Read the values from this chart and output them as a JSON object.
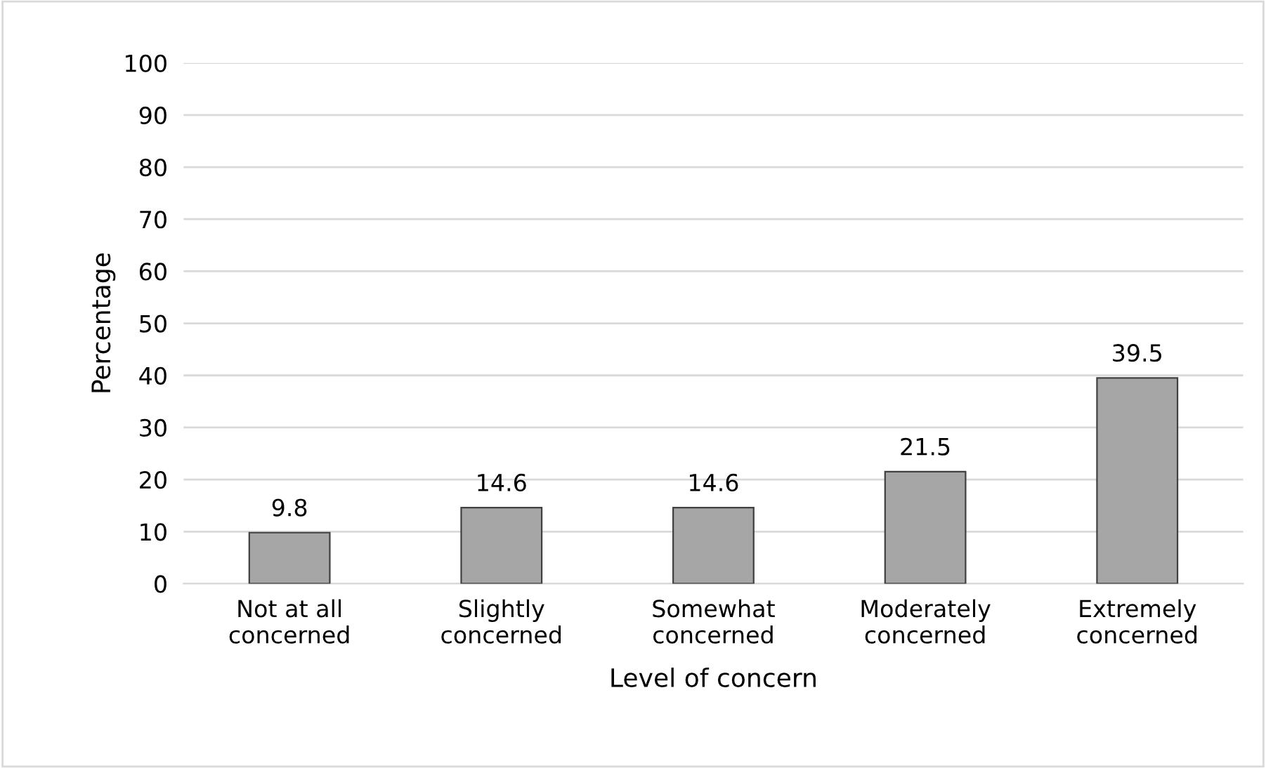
{
  "chart_data": {
    "type": "bar",
    "xlabel": "Level of concern",
    "ylabel": "Percentage",
    "categories": [
      "Not at all\nconcerned",
      "Slightly\nconcerned",
      "Somewhat\nconcerned",
      "Moderately\nconcerned",
      "Extremely\nconcerned"
    ],
    "values": [
      9.8,
      14.6,
      14.6,
      21.5,
      39.5
    ],
    "color": "#a6a6a6",
    "ylim": [
      0,
      100
    ],
    "yticks": [
      0,
      10,
      20,
      30,
      40,
      50,
      60,
      70,
      80,
      90,
      100
    ],
    "grid": "y",
    "data_labels": true
  }
}
